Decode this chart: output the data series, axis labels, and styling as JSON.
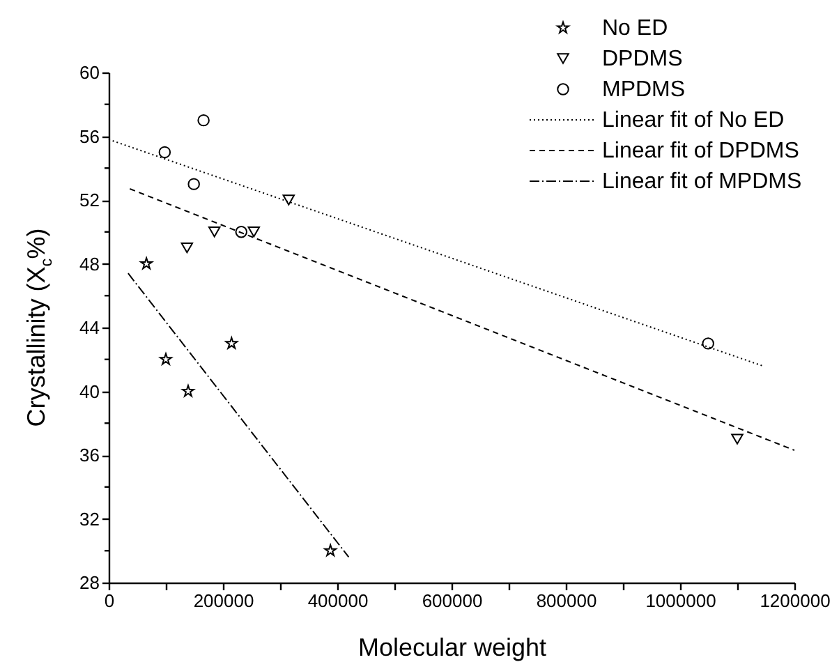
{
  "chart_data": {
    "type": "scatter",
    "xlabel": "Molecular weight",
    "ylabel": "Crystallinity (X$_{c}$%)",
    "xlim": [
      0,
      1200000
    ],
    "ylim": [
      28,
      60
    ],
    "xticks": [
      0,
      {
        "value": 100000,
        "label": null
      },
      200000,
      {
        "value": 300000,
        "label": null
      },
      400000,
      {
        "value": 500000,
        "label": null
      },
      600000,
      {
        "value": 700000,
        "label": null
      },
      800000,
      {
        "value": 900000,
        "label": null
      },
      1000000,
      {
        "value": 1100000,
        "label": null
      },
      1200000
    ],
    "yticks": [
      28,
      {
        "value": 30,
        "label": null
      },
      32,
      {
        "value": 34,
        "label": null
      },
      36,
      {
        "value": 38,
        "label": null
      },
      40,
      {
        "value": 42,
        "label": null
      },
      44,
      {
        "value": 46,
        "label": null
      },
      48,
      {
        "value": 50,
        "label": null
      },
      52,
      {
        "value": 54,
        "label": null
      },
      56,
      {
        "value": 58,
        "label": null
      },
      60
    ],
    "grid": false,
    "legend": "top right",
    "series": [
      {
        "name": "No ED",
        "marker": "star",
        "color": "#000000",
        "x": [
          66000,
          100000,
          139000,
          215000,
          388000
        ],
        "values": [
          48,
          42,
          40,
          43,
          30
        ]
      },
      {
        "name": "DPDMS",
        "marker": "triangle",
        "color": "#000000",
        "x": [
          137000,
          185000,
          254000,
          315000,
          1100000
        ],
        "values": [
          49,
          50,
          50,
          52,
          37
        ]
      },
      {
        "name": "MPDMS",
        "marker": "circle",
        "color": "#000000",
        "x": [
          98000,
          149000,
          166000,
          232000,
          1049000
        ],
        "values": [
          55,
          53,
          57,
          50,
          43
        ]
      },
      {
        "name": "Linear fit of No ED",
        "type": "line",
        "line_style": "dotted",
        "color": "#000000",
        "x": [
          0,
          1144000
        ],
        "values": [
          55.8,
          41.6
        ]
      },
      {
        "name": "Linear fit of DPDMS",
        "type": "line",
        "line_style": "dashed",
        "color": "#000000",
        "x": [
          37000,
          1200000
        ],
        "values": [
          52.7,
          36.3
        ]
      },
      {
        "name": "Linear fit of MPDMS",
        "type": "line",
        "line_style": "dashdot",
        "color": "#000000",
        "x": [
          34000,
          420000
        ],
        "values": [
          47.4,
          29.6
        ]
      }
    ]
  }
}
